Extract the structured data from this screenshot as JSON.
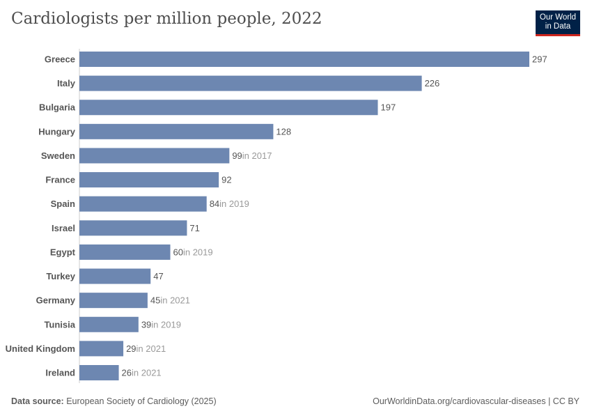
{
  "title": "Cardiologists per million people, 2022",
  "logo": {
    "line1": "Our World",
    "line2": "in Data"
  },
  "footer": {
    "source_label": "Data source:",
    "source": "European Society of Cardiology (2025)",
    "url": "OurWorldinData.org/cardiovascular-diseases | CC BY"
  },
  "chart_data": {
    "type": "bar",
    "orientation": "horizontal",
    "title": "Cardiologists per million people, 2022",
    "bar_color": "#6d87b1",
    "categories": [
      "Greece",
      "Italy",
      "Bulgaria",
      "Hungary",
      "Sweden",
      "France",
      "Spain",
      "Israel",
      "Egypt",
      "Turkey",
      "Germany",
      "Tunisia",
      "United Kingdom",
      "Ireland"
    ],
    "values": [
      297,
      226,
      197,
      128,
      99,
      92,
      84,
      71,
      60,
      47,
      45,
      39,
      29,
      26
    ],
    "notes": [
      "",
      "",
      "",
      "",
      "in 2017",
      "",
      "in 2019",
      "",
      "in 2019",
      "",
      "in 2021",
      "in 2019",
      "in 2021",
      "in 2021"
    ],
    "xlim": [
      0,
      297
    ],
    "grid": false
  }
}
